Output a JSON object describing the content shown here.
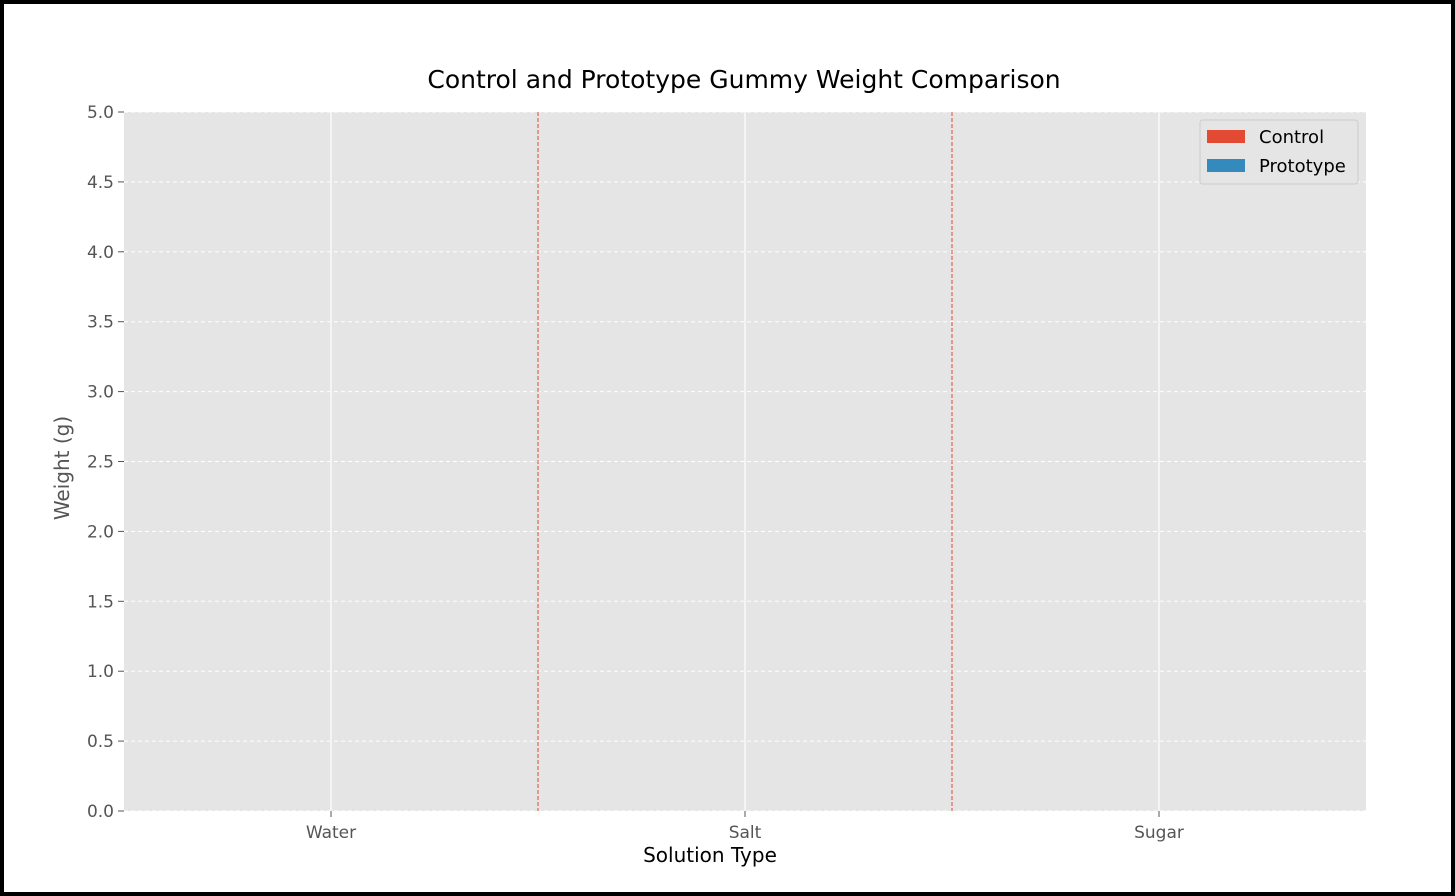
{
  "chart_data": {
    "type": "bar",
    "title": "Control and Prototype Gummy Weight Comparison",
    "xlabel": "Solution Type",
    "ylabel": "Weight (g)",
    "categories": [
      "Water",
      "Salt",
      "Sugar"
    ],
    "series": [
      {
        "name": "Control",
        "values": [
          null,
          null,
          null
        ]
      },
      {
        "name": "Prototype",
        "values": [
          null,
          null,
          null
        ]
      }
    ],
    "ylim": [
      0,
      5
    ],
    "yticks": [
      "0.0",
      "0.5",
      "1.0",
      "1.5",
      "2.0",
      "2.5",
      "3.0",
      "3.5",
      "4.0",
      "4.5",
      "5.0"
    ],
    "grid": true,
    "legend_position": "top-right",
    "category_separators": [
      0.5,
      1.5
    ],
    "colors": {
      "control": "#E24A33",
      "prototype": "#348ABD",
      "plot_background": "#E5E5E5",
      "grid": "#FFFFFF",
      "separator": "#E24A33",
      "text": "#555555",
      "title": "#000000"
    }
  }
}
